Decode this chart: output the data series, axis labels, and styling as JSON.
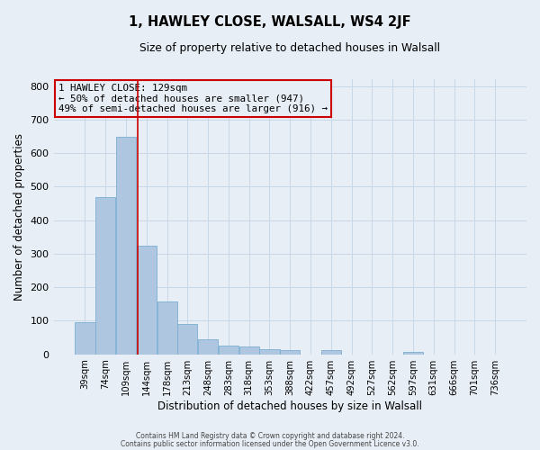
{
  "title": "1, HAWLEY CLOSE, WALSALL, WS4 2JF",
  "subtitle": "Size of property relative to detached houses in Walsall",
  "xlabel": "Distribution of detached houses by size in Walsall",
  "ylabel": "Number of detached properties",
  "bar_labels": [
    "39sqm",
    "74sqm",
    "109sqm",
    "144sqm",
    "178sqm",
    "213sqm",
    "248sqm",
    "283sqm",
    "318sqm",
    "353sqm",
    "388sqm",
    "422sqm",
    "457sqm",
    "492sqm",
    "527sqm",
    "562sqm",
    "597sqm",
    "631sqm",
    "666sqm",
    "701sqm",
    "736sqm"
  ],
  "bar_values": [
    95,
    470,
    648,
    325,
    158,
    90,
    44,
    27,
    23,
    15,
    13,
    0,
    13,
    0,
    0,
    0,
    8,
    0,
    0,
    0,
    0
  ],
  "bar_color": "#aec6df",
  "bar_edgecolor": "#7aafd4",
  "property_line_color": "#cc0000",
  "annotation_title": "1 HAWLEY CLOSE: 129sqm",
  "annotation_line1": "← 50% of detached houses are smaller (947)",
  "annotation_line2": "49% of semi-detached houses are larger (916) →",
  "annotation_box_edgecolor": "#cc0000",
  "ylim": [
    0,
    820
  ],
  "yticks": [
    0,
    100,
    200,
    300,
    400,
    500,
    600,
    700,
    800
  ],
  "grid_color": "#c8d8e8",
  "bg_color": "#e8eef5",
  "footer1": "Contains HM Land Registry data © Crown copyright and database right 2024.",
  "footer2": "Contains public sector information licensed under the Open Government Licence v3.0."
}
